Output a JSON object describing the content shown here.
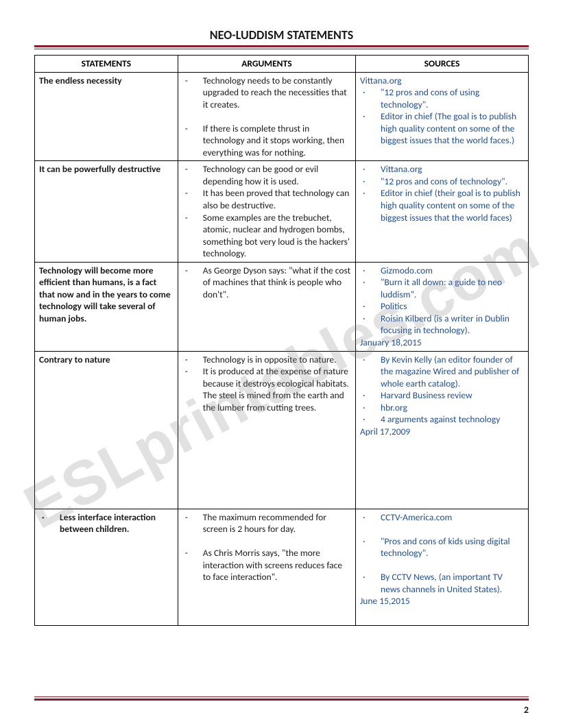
{
  "title": "NEO-LUDDISM STATEMENTS",
  "pageNumber": "2",
  "watermark": "ESLprintables.com",
  "headers": {
    "c1": "STATEMENTS",
    "c2": "ARGUMENTS",
    "c3": "SOURCES"
  },
  "rows": {
    "r1": {
      "stmt": "The endless necessity",
      "arg1": "Technology needs to be constantly upgraded to reach the necessities that it creates.",
      "arg2": "If there is complete thrust in technology and it stops working, then everything was for nothing.",
      "src1": "Vittana.org",
      "src2": "\"12 pros and cons of using technology\".",
      "src3": "Editor in chief (The goal is to publish high quality content on some of the biggest issues that the world faces.)"
    },
    "r2": {
      "stmt": "  It can be powerfully destructive",
      "arg1": "Technology can be good or evil depending how it is used.",
      "arg2": " It has been proved that technology can also be destructive.",
      "arg3": "Some examples are the trebuchet, atomic, nuclear and hydrogen bombs, something bot very loud is the hackers' technology.",
      "src1": "Vittana.org",
      "src2": "\"12 pros and cons of technology\".",
      "src3": "Editor in chief (their goal is to publish high quality content on some of the biggest issues that the world faces)"
    },
    "r3": {
      "stmt": "Technology will become more efficient than humans, is a fact that now and in the years to come technology will take several of human jobs.",
      "arg1": "As George Dyson says: \"what if the cost of machines that think is people who don't\".",
      "src1": "Gizmodo.com",
      "src2": "\"Burn it all down: a guide to neo luddism\".",
      "src3": "Politics",
      "src4": "Roisin Kilberd (is a writer in Dublin focusing in technology).",
      "src5": " January 18,2015"
    },
    "r4": {
      "stmt": " Contrary to nature",
      "arg1": "Technology is in opposite to nature.",
      "arg2": "It is produced at the expense of nature because it destroys ecological habitats. The steel is mined from the earth and the lumber from cutting trees.",
      "src1": "By Kevin Kelly (an editor founder of the magazine Wired and publisher of whole earth catalog).",
      "src2": "Harvard Business review",
      "src3": "hbr.org",
      "src4": "4 arguments against technology",
      "src5": " April 17,2009"
    },
    "r5": {
      "stmtBullet": "·",
      "stmt": "Less interface interaction between children.",
      "arg1": "The maximum recommended for screen is 2 hours for day.",
      "arg2": "As Chris Morris says, \"the more interaction with screens reduces face to face interaction\".",
      "src1": "CCTV-America.com",
      "src2": "\"Pros and cons of kids using digital technology\".",
      "src3": "By CCTV News, (an important TV news channels in United States).",
      "src4": " June 15,2015"
    }
  }
}
